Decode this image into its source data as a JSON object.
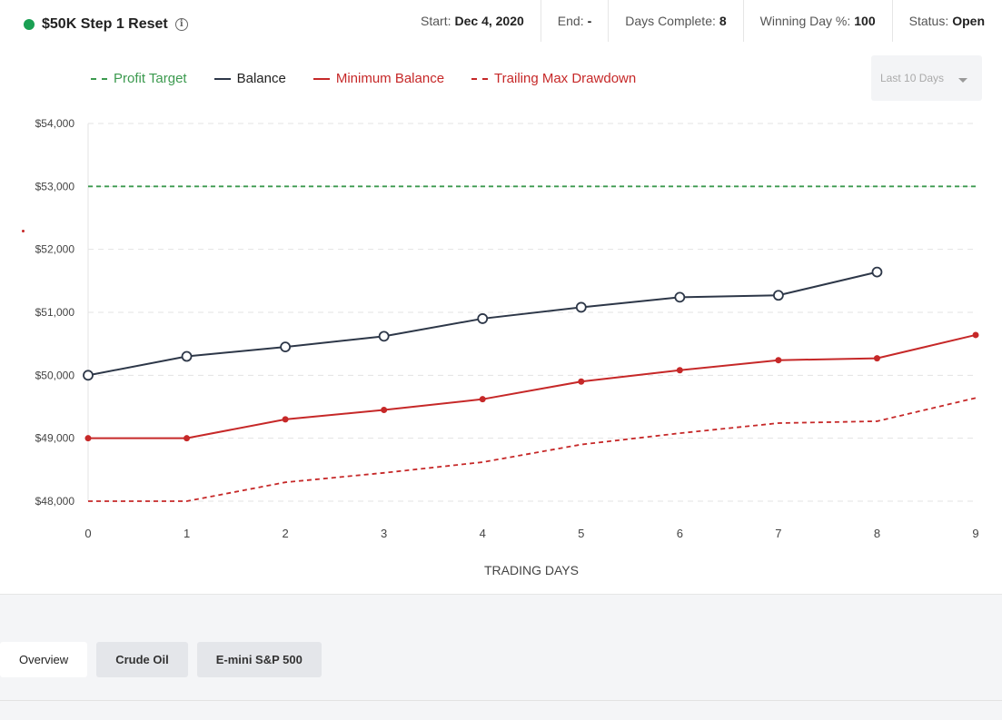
{
  "account": {
    "name": "$50K Step 1 Reset",
    "status_color": "#1aa053"
  },
  "stats": [
    {
      "label": "Start:",
      "value": "Dec 4, 2020"
    },
    {
      "label": "End:",
      "value": "-"
    },
    {
      "label": "Days Complete:",
      "value": "8"
    },
    {
      "label": "Winning Day %:",
      "value": "100"
    },
    {
      "label": "Status:",
      "value": "Open"
    }
  ],
  "legend": {
    "profit_target": "Profit Target",
    "balance": "Balance",
    "minimum_balance": "Minimum Balance",
    "trailing_max_drawdown": "Trailing Max Drawdown"
  },
  "range_select": {
    "value": "Last 10 Days"
  },
  "chart_data": {
    "type": "line",
    "xlabel": "TRADING DAYS",
    "ylabel": "",
    "x": [
      0,
      1,
      2,
      3,
      4,
      5,
      6,
      7,
      8,
      9
    ],
    "ylim": [
      48000,
      54000
    ],
    "yticks": [
      48000,
      49000,
      50000,
      51000,
      52000,
      53000,
      54000
    ],
    "ytick_labels": [
      "$48,000",
      "$49,000",
      "$50,000",
      "$51,000",
      "$52,000",
      "$53,000",
      "$54,000"
    ],
    "grid": true,
    "legend_position": "top-left",
    "series": [
      {
        "name": "Profit Target",
        "style": "dashed",
        "color": "#3c9a4f",
        "x": [
          0,
          9
        ],
        "values": [
          53000,
          53000
        ]
      },
      {
        "name": "Balance",
        "style": "solid-open-markers",
        "color": "#2d3748",
        "x": [
          0,
          1,
          2,
          3,
          4,
          5,
          6,
          7,
          8
        ],
        "values": [
          50000,
          50300,
          50450,
          50620,
          50900,
          51080,
          51240,
          51270,
          51640
        ]
      },
      {
        "name": "Minimum Balance",
        "style": "solid-filled-markers",
        "color": "#c62828",
        "x": [
          0,
          1,
          2,
          3,
          4,
          5,
          6,
          7,
          8,
          9
        ],
        "values": [
          49000,
          49000,
          49300,
          49450,
          49620,
          49900,
          50080,
          50240,
          50270,
          50640
        ]
      },
      {
        "name": "Trailing Max Drawdown",
        "style": "dashed",
        "color": "#c62828",
        "x": [
          0,
          1,
          2,
          3,
          4,
          5,
          6,
          7,
          8,
          9
        ],
        "values": [
          48000,
          48000,
          48300,
          48450,
          48620,
          48900,
          49080,
          49240,
          49270,
          49640
        ]
      }
    ]
  },
  "tabs": [
    {
      "label": "Overview",
      "active": true
    },
    {
      "label": "Crude Oil",
      "active": false
    },
    {
      "label": "E-mini S&P 500",
      "active": false
    }
  ]
}
